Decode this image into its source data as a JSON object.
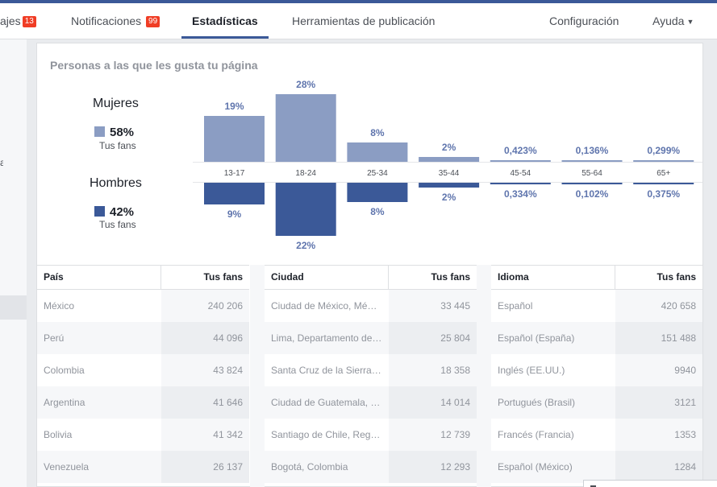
{
  "nav": {
    "messages_label": "ajes",
    "messages_badge": "13",
    "notifications_label": "Notificaciones",
    "notifications_badge": "99",
    "stats_label": "Estadísticas",
    "publishing_label": "Herramientas de publicación",
    "settings_label": "Configuración",
    "help_label": "Ayuda"
  },
  "left_fragment": "a",
  "card": {
    "title": "Personas a las que les gusta tu página",
    "women": {
      "label": "Mujeres",
      "pct": "58%",
      "sub": "Tus fans",
      "color": "#8b9dc3"
    },
    "men": {
      "label": "Hombres",
      "pct": "42%",
      "sub": "Tus fans",
      "color": "#3b5998"
    }
  },
  "chart_data": {
    "type": "bar",
    "categories": [
      "13-17",
      "18-24",
      "25-34",
      "35-44",
      "45-54",
      "55-64",
      "65+"
    ],
    "series": [
      {
        "name": "Mujeres",
        "values": [
          19,
          28,
          8,
          2,
          0.423,
          0.136,
          0.299
        ],
        "labels": [
          "19%",
          "28%",
          "8%",
          "2%",
          "0,423%",
          "0,136%",
          "0,299%"
        ],
        "color": "#8b9dc3"
      },
      {
        "name": "Hombres",
        "values": [
          9,
          22,
          8,
          2,
          0.334,
          0.102,
          0.375
        ],
        "labels": [
          "9%",
          "22%",
          "8%",
          "2%",
          "0,334%",
          "0,102%",
          "0,375%"
        ],
        "color": "#3b5998"
      }
    ],
    "label_color": "#5f75ad"
  },
  "tables": [
    {
      "col1": "País",
      "col2": "Tus fans",
      "rows": [
        {
          "name": "México",
          "value": "240 206"
        },
        {
          "name": "Perú",
          "value": "44 096"
        },
        {
          "name": "Colombia",
          "value": "43 824"
        },
        {
          "name": "Argentina",
          "value": "41 646"
        },
        {
          "name": "Bolivia",
          "value": "41 342"
        },
        {
          "name": "Venezuela",
          "value": "26 137"
        }
      ]
    },
    {
      "col1": "Ciudad",
      "col2": "Tus fans",
      "rows": [
        {
          "name": "Ciudad de México, Mé…",
          "value": "33 445"
        },
        {
          "name": "Lima, Departamento de…",
          "value": "25 804"
        },
        {
          "name": "Santa Cruz de la Sierra…",
          "value": "18 358"
        },
        {
          "name": "Ciudad de Guatemala, …",
          "value": "14 014"
        },
        {
          "name": "Santiago de Chile, Reg…",
          "value": "12 739"
        },
        {
          "name": "Bogotá, Colombia",
          "value": "12 293"
        }
      ]
    },
    {
      "col1": "Idioma",
      "col2": "Tus fans",
      "rows": [
        {
          "name": "Español",
          "value": "420 658"
        },
        {
          "name": "Español (España)",
          "value": "151 488"
        },
        {
          "name": "Inglés (EE.UU.)",
          "value": "9940"
        },
        {
          "name": "Portugués (Brasil)",
          "value": "3121"
        },
        {
          "name": "Francés (Francia)",
          "value": "1353"
        },
        {
          "name": "Español (México)",
          "value": "1284"
        }
      ]
    }
  ]
}
